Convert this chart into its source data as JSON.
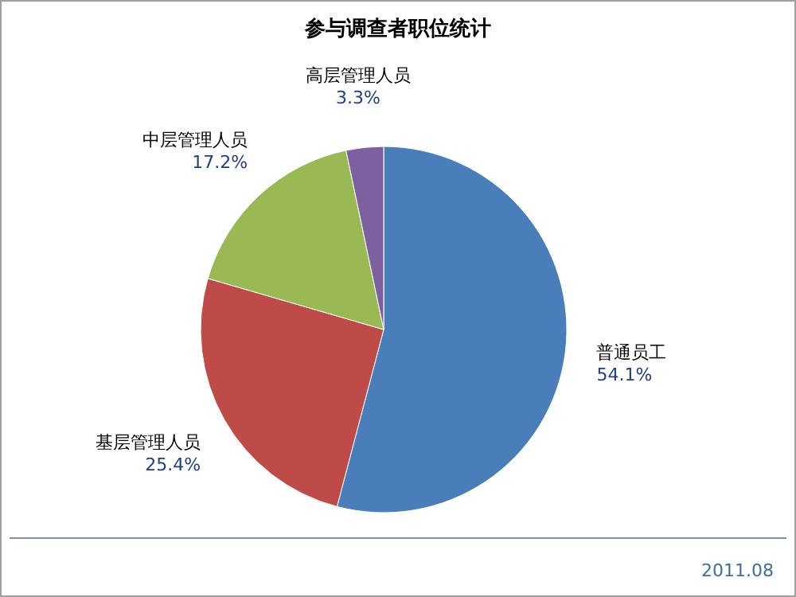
{
  "chart_data": {
    "type": "pie",
    "title": "参与调查者职位统计",
    "categories": [
      "普通员工",
      "基层管理人员",
      "中层管理人员",
      "高层管理人员"
    ],
    "values": [
      54.1,
      25.4,
      17.2,
      3.3
    ],
    "colors": [
      "#4a7ebb",
      "#be4b48",
      "#98b954",
      "#7d60a0"
    ],
    "value_labels": [
      "54.1%",
      "25.4%",
      "17.2%",
      "3.3%"
    ],
    "annotations": [
      "2011.08"
    ]
  }
}
